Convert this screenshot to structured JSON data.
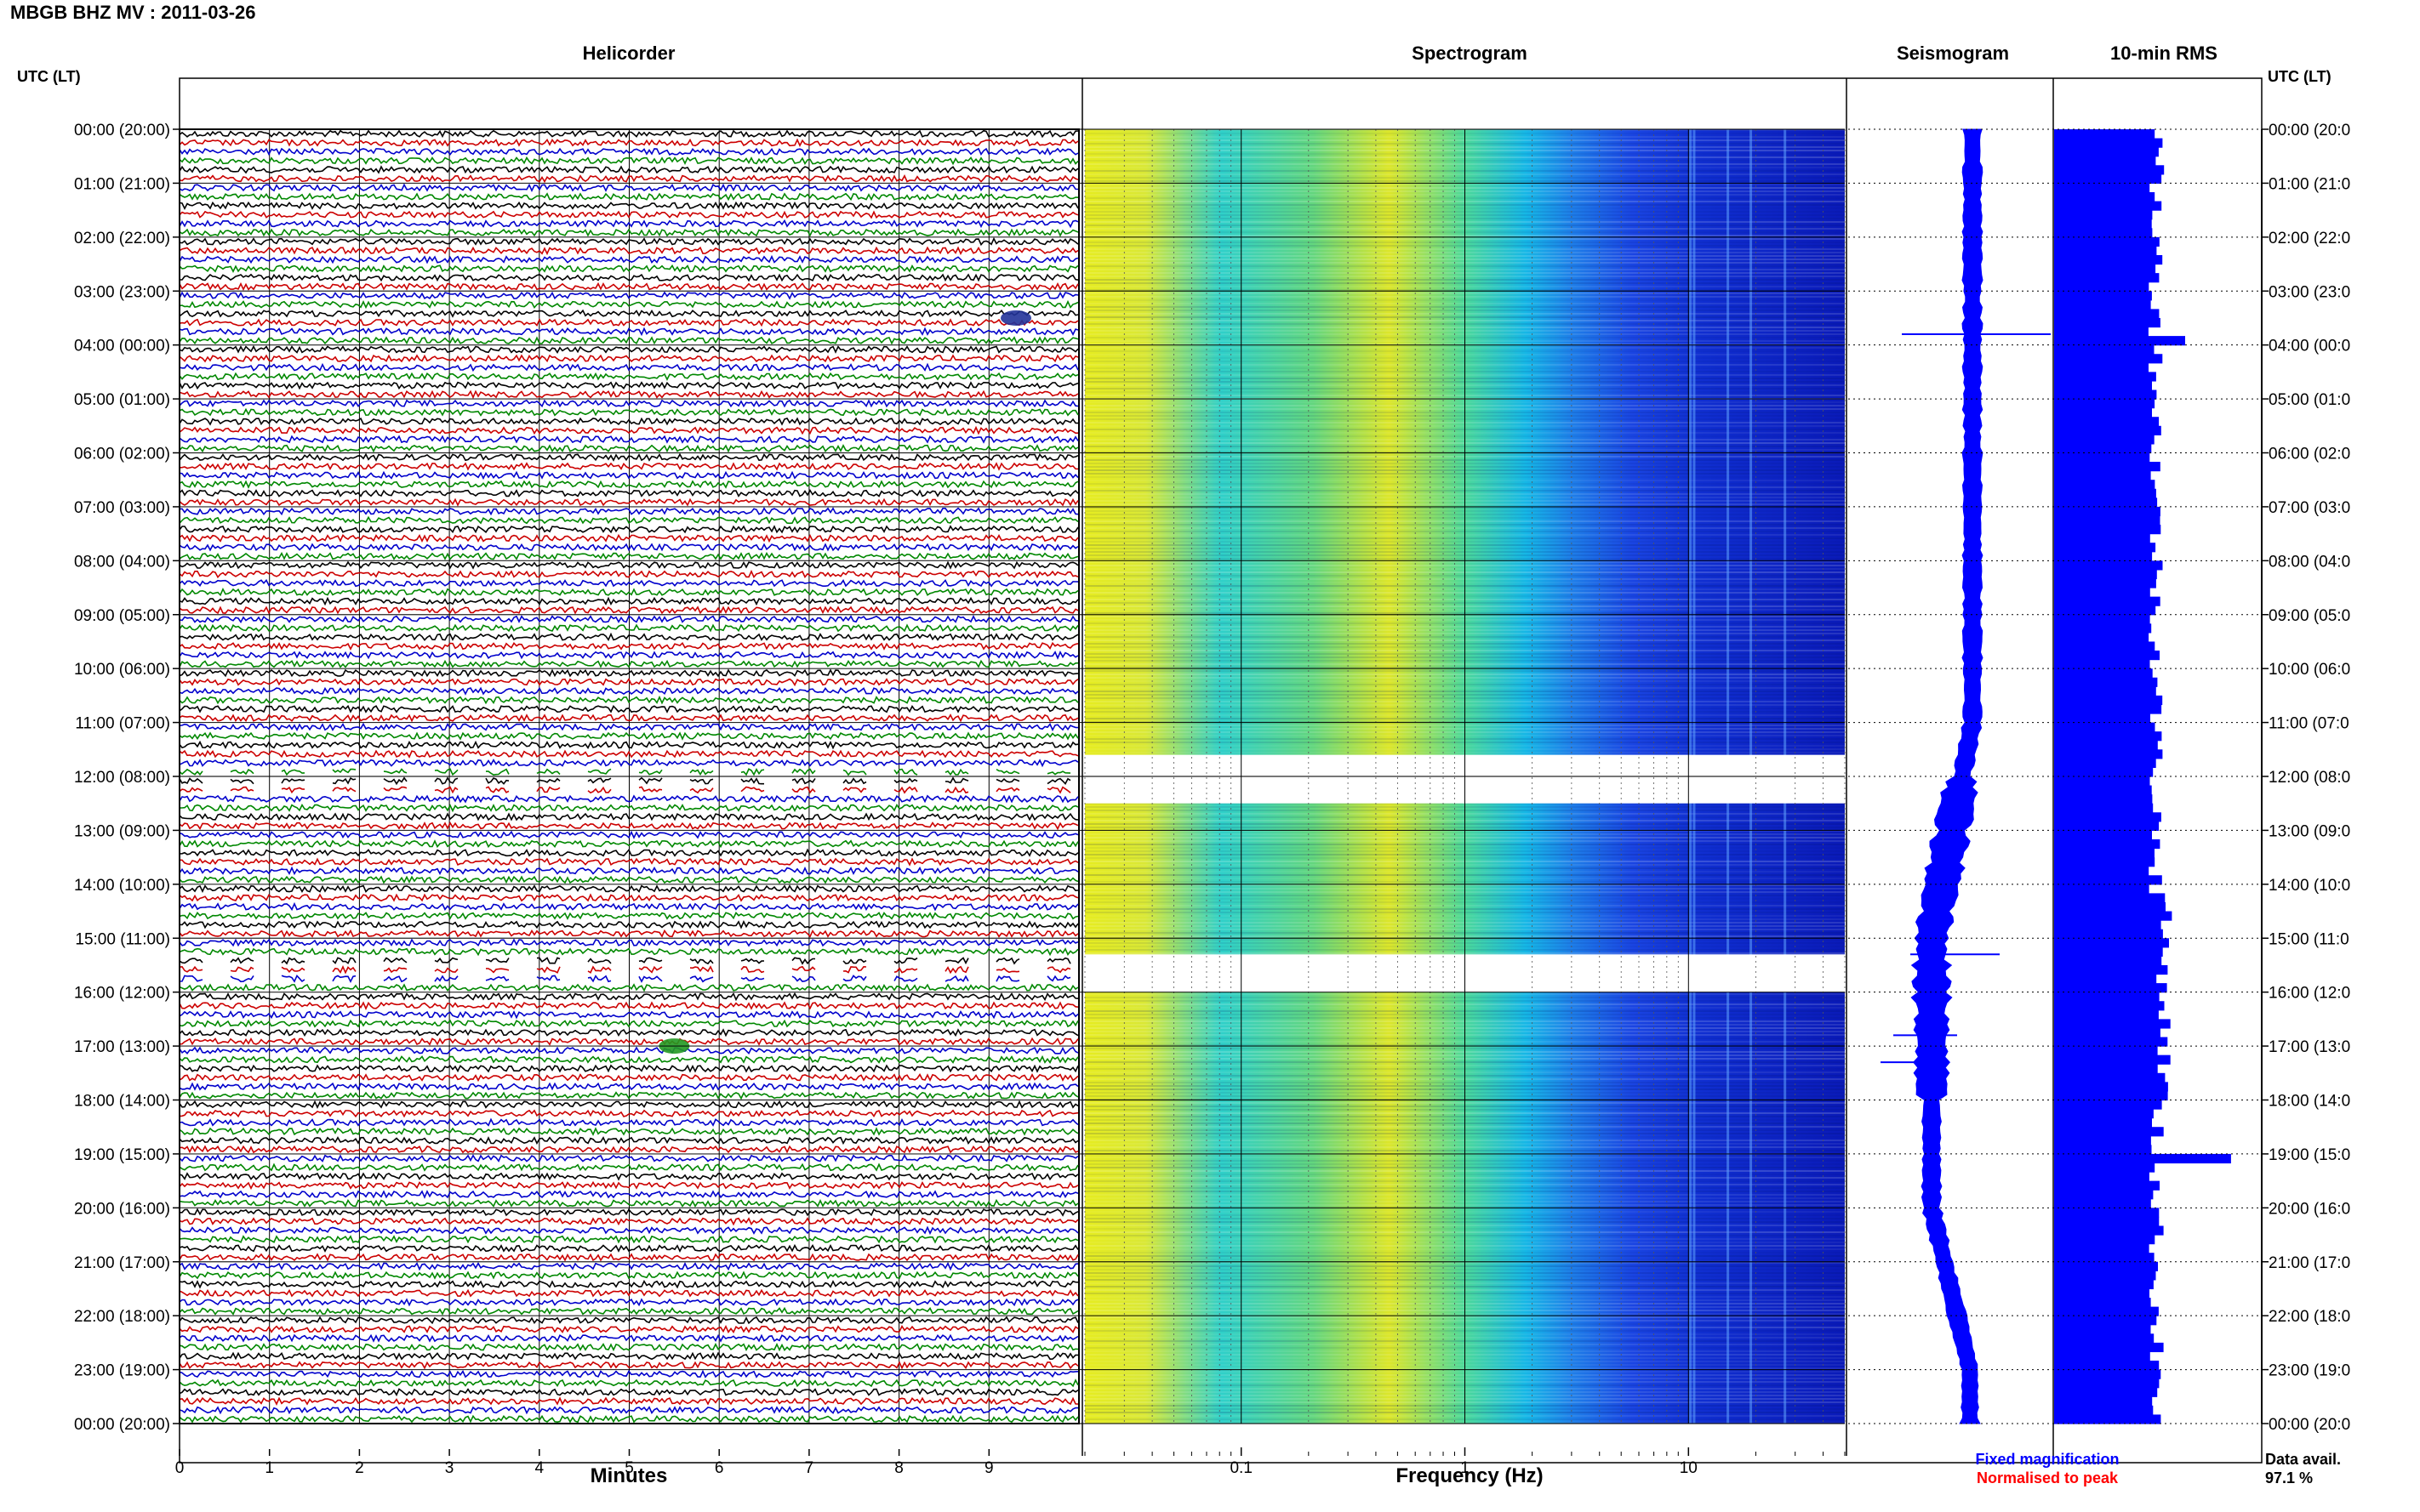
{
  "header": {
    "title": "MBGB BHZ MV : 2011-03-26"
  },
  "axes": {
    "utc_label": "UTC (LT)",
    "minutes_label": "Minutes",
    "freq_label": "Frequency (Hz)",
    "hour_labels": [
      "00:00 (20:00)",
      "01:00 (21:00)",
      "02:00 (22:00)",
      "03:00 (23:00)",
      "04:00 (00:00)",
      "05:00 (01:00)",
      "06:00 (02:00)",
      "07:00 (03:00)",
      "08:00 (04:00)",
      "09:00 (05:00)",
      "10:00 (06:00)",
      "11:00 (07:00)",
      "12:00 (08:00)",
      "13:00 (09:00)",
      "14:00 (10:00)",
      "15:00 (11:00)",
      "16:00 (12:00)",
      "17:00 (13:00)",
      "18:00 (14:00)",
      "19:00 (15:00)",
      "20:00 (16:00)",
      "21:00 (17:00)",
      "22:00 (18:00)",
      "23:00 (19:00)",
      "00:00 (20:00)"
    ],
    "right_hour_labels": [
      "00:00 (20:0",
      "01:00 (21:0",
      "02:00 (22:0",
      "03:00 (23:0",
      "04:00 (00:0",
      "05:00 (01:0",
      "06:00 (02:0",
      "07:00 (03:0",
      "08:00 (04:0",
      "09:00 (05:0",
      "10:00 (06:0",
      "11:00 (07:0",
      "12:00 (08:0",
      "13:00 (09:0",
      "14:00 (10:0",
      "15:00 (11:0",
      "16:00 (12:0",
      "17:00 (13:0",
      "18:00 (14:0",
      "19:00 (15:0",
      "20:00 (16:0",
      "21:00 (17:0",
      "22:00 (18:0",
      "23:00 (19:0",
      "00:00 (20:0"
    ],
    "minute_ticks": [
      "0",
      "1",
      "2",
      "3",
      "4",
      "5",
      "6",
      "7",
      "8",
      "9"
    ],
    "freq_ticks": [
      "0.1",
      "1",
      "10"
    ]
  },
  "panels": {
    "helicorder": "Helicorder",
    "spectrogram": "Spectrogram",
    "seismogram": "Seismogram",
    "rms": "10-min RMS"
  },
  "legend": {
    "fixed": "Fixed magnification",
    "normalised": "Normalised to peak",
    "fixed_color": "#0000ff",
    "normalised_color": "#ff0000"
  },
  "availability": {
    "label": "Data avail.",
    "value": "97.1 %"
  },
  "colors": {
    "trace_cycle": [
      "#000000",
      "#cc0000",
      "#0000cc",
      "#008800"
    ],
    "seismogram": "#0000ff",
    "rms_bar": "#0000ff"
  },
  "chart_data": [
    {
      "type": "line",
      "title": "Helicorder",
      "xlabel": "Minutes",
      "xlim": [
        0,
        10
      ],
      "ylim_hours": [
        0,
        24
      ],
      "rows_per_hour": 6,
      "rows": 144,
      "gaps_hours": [
        [
          11.8,
          12.3
        ],
        [
          15.3,
          15.8
        ]
      ],
      "events": [
        {
          "hour": 3.5,
          "minute": 9.3,
          "label": "event"
        },
        {
          "hour": 17.0,
          "minute": 5.5,
          "label": "event"
        }
      ]
    },
    {
      "type": "heatmap",
      "title": "Spectrogram",
      "xlabel": "Frequency (Hz)",
      "xscale": "log",
      "xlim": [
        0.02,
        50
      ],
      "ylim_hours": [
        0,
        24
      ],
      "gaps_hours": [
        [
          11.6,
          12.5
        ],
        [
          15.3,
          16.0
        ]
      ]
    },
    {
      "type": "line",
      "title": "Seismogram",
      "ylim_hours": [
        0,
        24
      ]
    },
    {
      "type": "bar",
      "title": "10-min RMS",
      "ylim_hours": [
        0,
        24
      ],
      "bins_per_hour": 6,
      "spikes": [
        {
          "hour": 3.8,
          "value": 1.0
        },
        {
          "hour": 19.0,
          "value": 1.35
        }
      ],
      "gaps_hours": [
        [
          11.8,
          12.3
        ],
        [
          15.3,
          15.8
        ]
      ]
    }
  ]
}
